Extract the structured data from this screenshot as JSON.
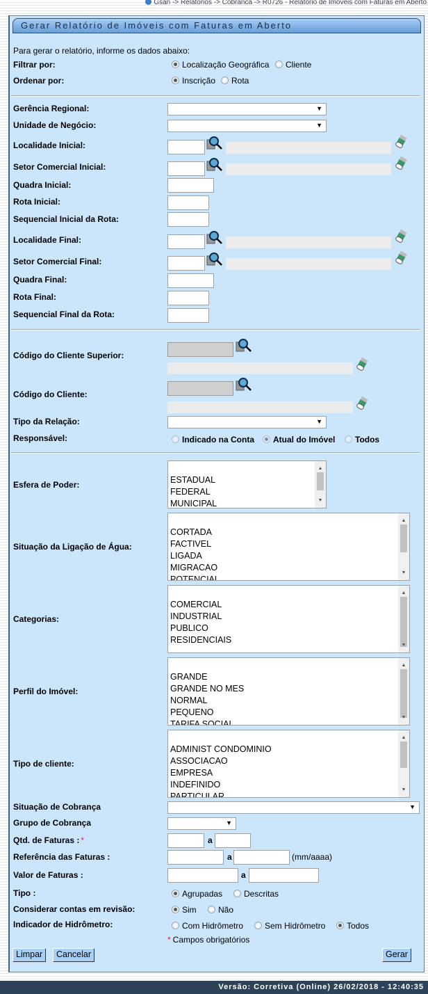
{
  "breadcrumb": "Gsan -> Relatorios -> Cobranca -> R0726 - Relatorio de Imoveis com Faturas em Aberto",
  "title": "Gerar Relatório de Imóveis com Faturas em Aberto",
  "intro": "Para gerar o relatório, informe os dados abaixo:",
  "labels": {
    "filtrar": "Filtrar por:",
    "ordenar": "Ordenar por:",
    "gerencia": "Gerência Regional:",
    "unidade": "Unidade de Negócio:",
    "loc_ini": "Localidade Inicial:",
    "setor_ini": "Setor Comercial Inicial:",
    "quadra_ini": "Quadra Inicial:",
    "rota_ini": "Rota Inicial:",
    "seq_ini": "Sequencial Inicial da Rota:",
    "loc_fim": "Localidade Final:",
    "setor_fim": "Setor Comercial Final:",
    "quadra_fim": "Quadra Final:",
    "rota_fim": "Rota Final:",
    "seq_fim": "Sequencial Final da Rota:",
    "cli_sup": "Código do Cliente Superior:",
    "cli": "Código do Cliente:",
    "tipo_rel": "Tipo da Relação:",
    "resp": "Responsável:",
    "esfera": "Esfera de Poder:",
    "sit_agua": "Situação da Ligação de Água:",
    "categorias": "Categorias:",
    "perfil": "Perfil do Imóvel:",
    "tipo_cli": "Tipo de cliente:",
    "sit_cob": "Situação de Cobrança",
    "grupo_cob": "Grupo de Cobrança",
    "qtd": "Qtd. de Faturas :",
    "ref": "Referência das Faturas :",
    "valor": "Valor de Faturas :",
    "tipo": "Tipo :",
    "considerar": "Considerar contas em revisão:",
    "hidro": "Indicador de Hidrômetro:"
  },
  "required_mark": "*",
  "range_sep": "a",
  "ref_hint": "(mm/aaaa)",
  "required_note": "Campos obrigatórios",
  "radios": {
    "filtrar": [
      {
        "label": "Localização Geográfica",
        "checked": true
      },
      {
        "label": "Cliente",
        "checked": false
      }
    ],
    "ordenar": [
      {
        "label": "Inscrição",
        "checked": true
      },
      {
        "label": "Rota",
        "checked": false
      }
    ],
    "resp": [
      {
        "label": "Indicado na Conta",
        "checked": false
      },
      {
        "label": "Atual do Imóvel",
        "checked": true
      },
      {
        "label": "Todos",
        "checked": false
      }
    ],
    "tipo": [
      {
        "label": "Agrupadas",
        "checked": true
      },
      {
        "label": "Descritas",
        "checked": false
      }
    ],
    "considerar": [
      {
        "label": "Sim",
        "checked": true
      },
      {
        "label": "Não",
        "checked": false
      }
    ],
    "hidro": [
      {
        "label": "Com Hidrômetro",
        "checked": false
      },
      {
        "label": "Sem Hidrômetro",
        "checked": false
      },
      {
        "label": "Todos",
        "checked": true
      }
    ]
  },
  "lists": {
    "esfera": [
      "",
      "ESTADUAL",
      "FEDERAL",
      "MUNICIPAL"
    ],
    "sit_agua": [
      "",
      "CORTADA",
      "FACTIVEL",
      "LIGADA",
      "MIGRACAO",
      "POTENCIAL"
    ],
    "categorias": [
      "",
      "COMERCIAL",
      "INDUSTRIAL",
      "PUBLICO",
      "RESIDENCIAIS"
    ],
    "perfil": [
      "",
      "GRANDE",
      "GRANDE NO MES",
      "NORMAL",
      "PEQUENO",
      "TARIFA SOCIAL"
    ],
    "tipo_cli": [
      "",
      "ADMINIST CONDOMINIO",
      "ASSOCIACAO",
      "EMPRESA",
      "INDEFINIDO",
      "PARTICULAR"
    ]
  },
  "buttons": {
    "limpar": "Limpar",
    "cancelar": "Cancelar",
    "gerar": "Gerar"
  },
  "footer": "Versão: Corretiva (Online) 26/02/2018 - 12:40:35"
}
